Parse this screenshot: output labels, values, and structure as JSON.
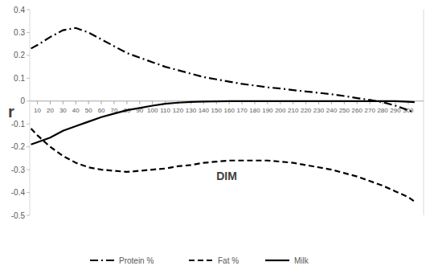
{
  "chart_data": {
    "type": "line",
    "x_label": "DIM",
    "y_label": "r",
    "x": [
      5,
      10,
      20,
      30,
      40,
      50,
      60,
      70,
      80,
      90,
      100,
      110,
      120,
      130,
      140,
      150,
      160,
      170,
      180,
      190,
      200,
      210,
      220,
      230,
      240,
      250,
      260,
      270,
      280,
      290,
      300,
      305
    ],
    "series": [
      {
        "name": "Protein %",
        "color": "#000000",
        "line_style": "dashdot",
        "values": [
          0.23,
          0.245,
          0.28,
          0.31,
          0.32,
          0.3,
          0.27,
          0.24,
          0.21,
          0.19,
          0.17,
          0.15,
          0.135,
          0.12,
          0.105,
          0.095,
          0.085,
          0.075,
          0.068,
          0.06,
          0.055,
          0.048,
          0.042,
          0.036,
          0.03,
          0.022,
          0.013,
          0.005,
          -0.005,
          -0.02,
          -0.04,
          -0.05
        ]
      },
      {
        "name": "Fat %",
        "color": "#000000",
        "line_style": "dashed",
        "values": [
          -0.12,
          -0.15,
          -0.2,
          -0.24,
          -0.27,
          -0.29,
          -0.3,
          -0.305,
          -0.31,
          -0.305,
          -0.3,
          -0.295,
          -0.285,
          -0.28,
          -0.27,
          -0.265,
          -0.26,
          -0.26,
          -0.26,
          -0.26,
          -0.265,
          -0.27,
          -0.28,
          -0.29,
          -0.3,
          -0.315,
          -0.33,
          -0.35,
          -0.37,
          -0.395,
          -0.42,
          -0.44
        ]
      },
      {
        "name": "Milk",
        "color": "#000000",
        "line_style": "solid",
        "values": [
          -0.19,
          -0.18,
          -0.16,
          -0.13,
          -0.11,
          -0.09,
          -0.07,
          -0.055,
          -0.04,
          -0.03,
          -0.02,
          -0.012,
          -0.007,
          -0.004,
          -0.002,
          -0.001,
          0,
          0,
          0,
          0,
          0,
          0,
          0,
          0,
          0,
          0,
          0,
          0,
          0,
          0,
          -0.003,
          -0.005
        ]
      }
    ],
    "xlim": [
      4,
      312
    ],
    "xticks": [
      10,
      20,
      30,
      40,
      50,
      60,
      70,
      80,
      90,
      100,
      110,
      120,
      130,
      140,
      150,
      160,
      170,
      180,
      190,
      200,
      210,
      220,
      230,
      240,
      250,
      260,
      270,
      280,
      290,
      300
    ],
    "ylim": [
      -0.5,
      0.4
    ],
    "yticks": [
      -0.5,
      -0.4,
      -0.3,
      -0.2,
      -0.1,
      0,
      0.1,
      0.2,
      0.3,
      0.4
    ],
    "grid": false,
    "legend": "bottom"
  }
}
